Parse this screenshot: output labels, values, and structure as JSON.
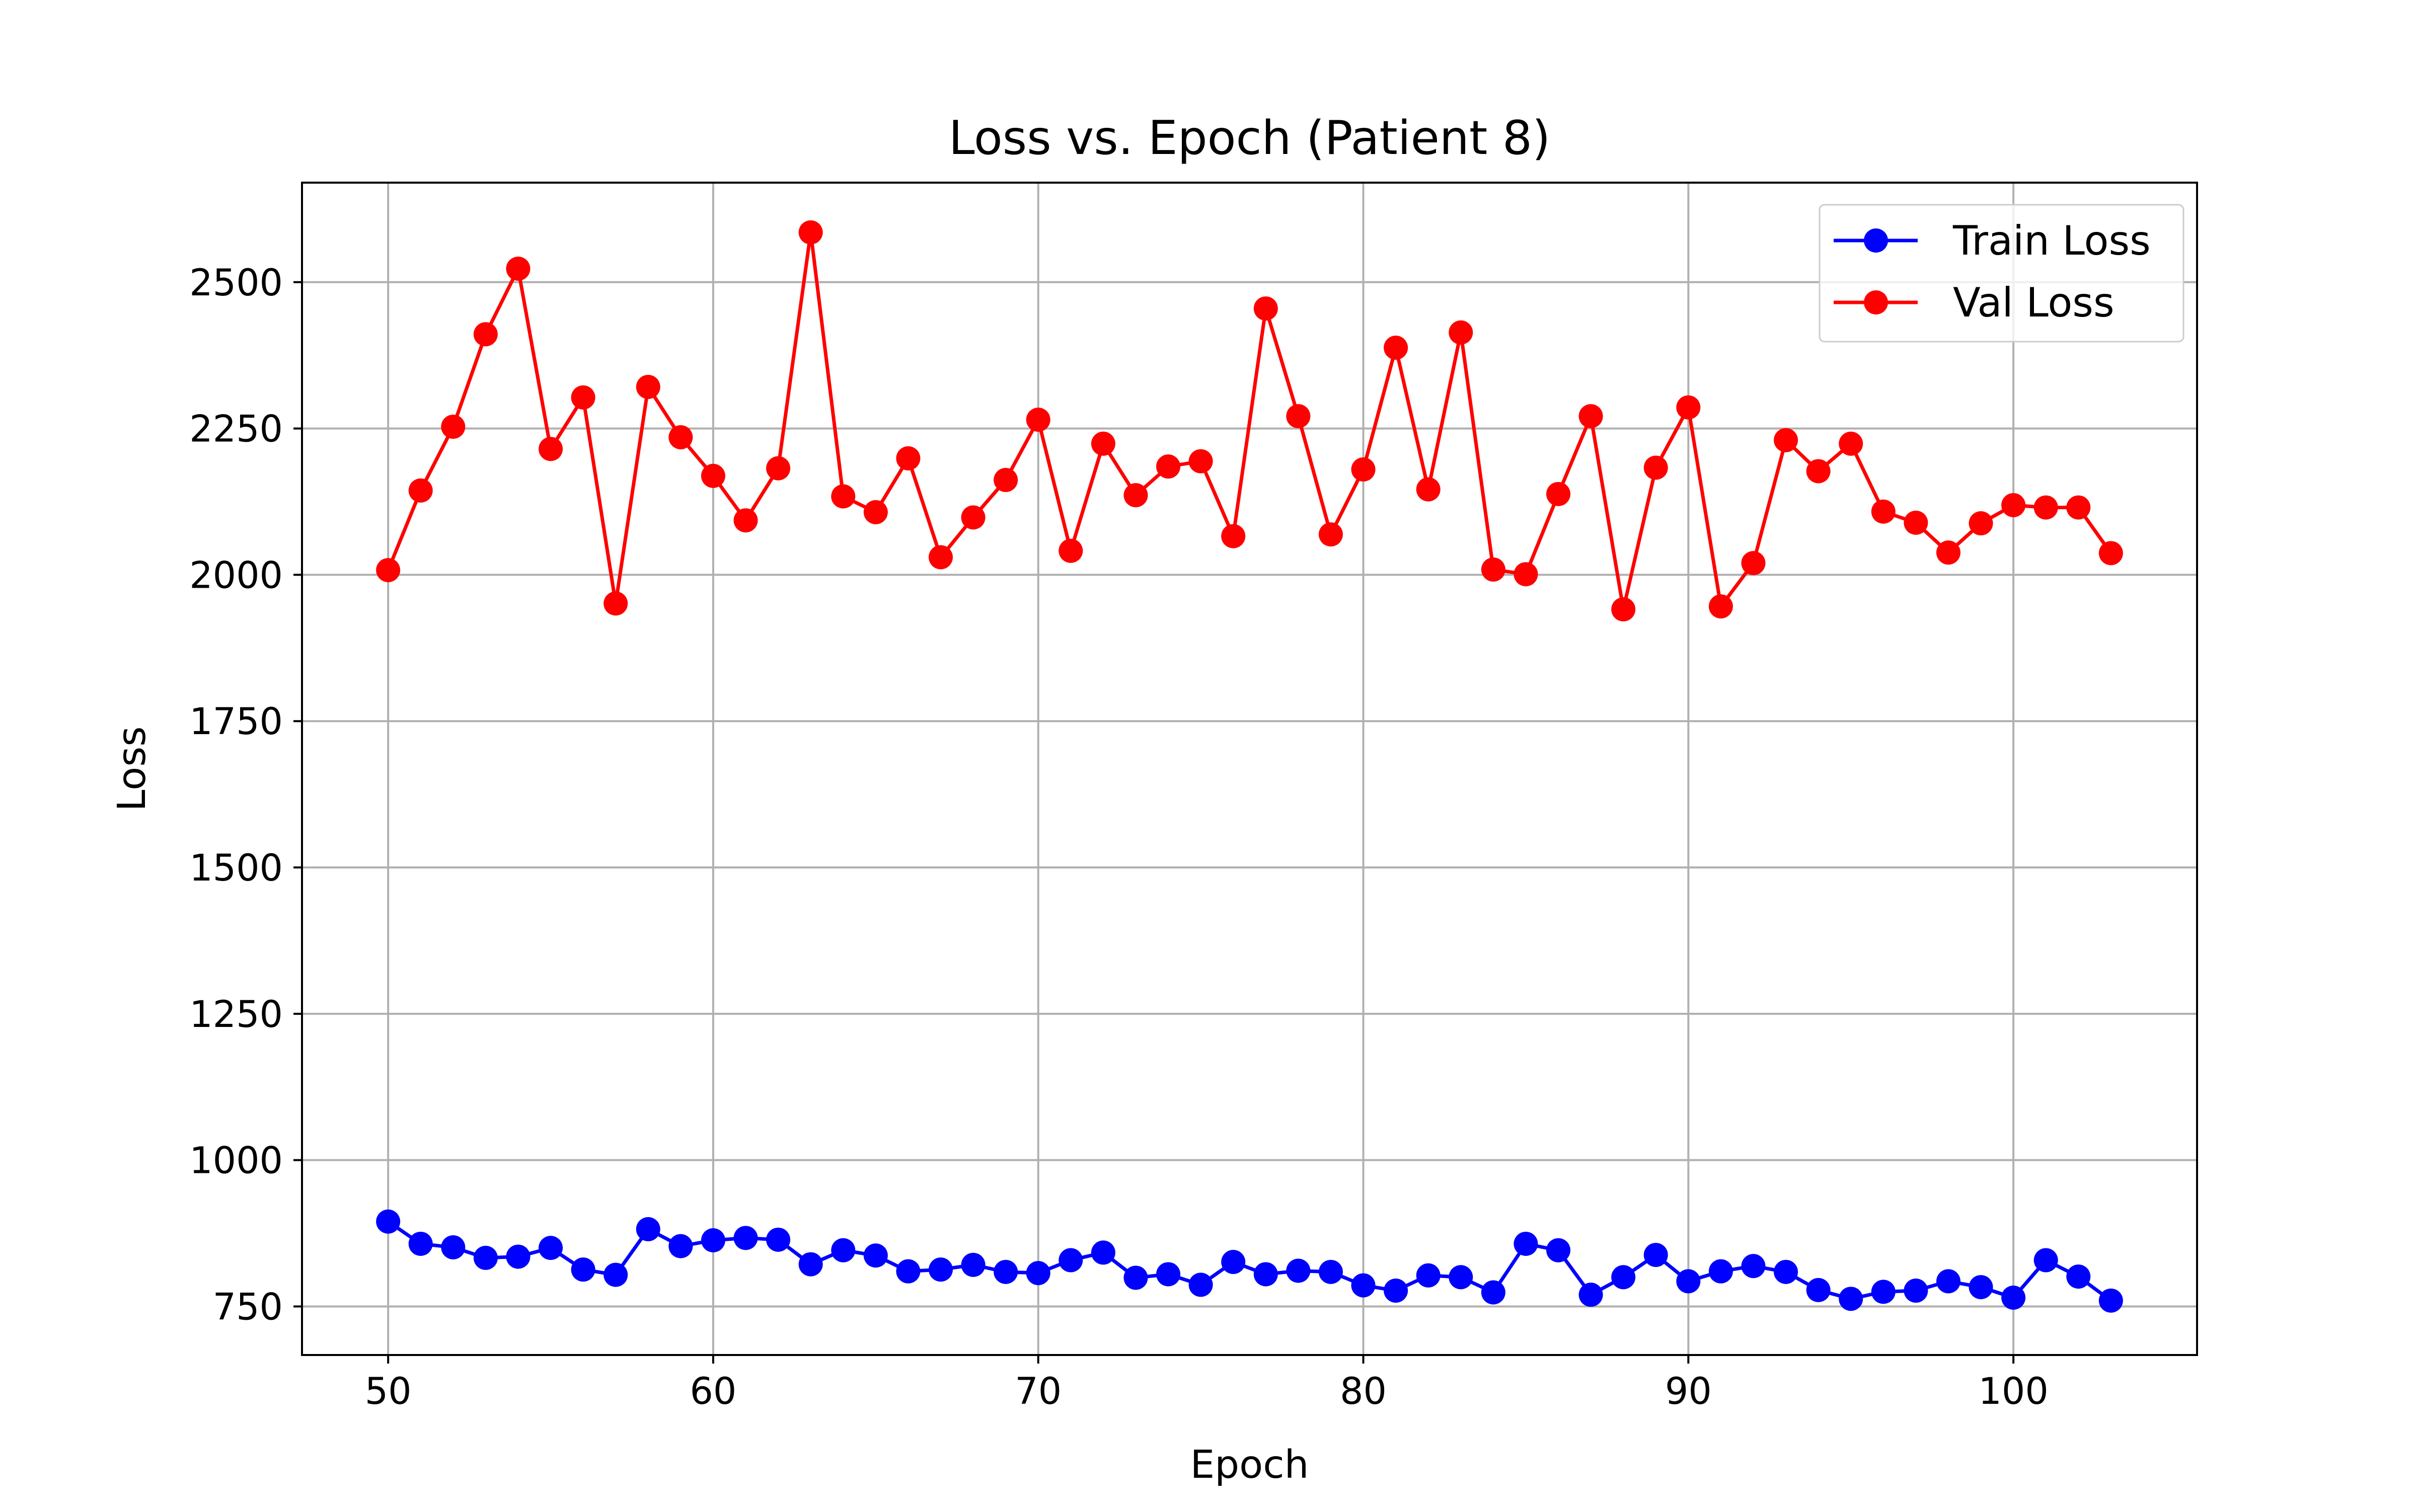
{
  "chart_data": {
    "type": "line",
    "title": "Loss vs. Epoch (Patient 8)",
    "xlabel": "Epoch",
    "ylabel": "Loss",
    "xlim": [
      47.35,
      105.65
    ],
    "ylim": [
      667,
      2670
    ],
    "xticks": [
      50,
      60,
      70,
      80,
      90,
      100
    ],
    "yticks": [
      750,
      1000,
      1250,
      1500,
      1750,
      2000,
      2250,
      2500
    ],
    "grid": true,
    "legend_position": "top-right",
    "x": [
      50,
      51,
      52,
      53,
      54,
      55,
      56,
      57,
      58,
      59,
      60,
      61,
      62,
      63,
      64,
      65,
      66,
      67,
      68,
      69,
      70,
      71,
      72,
      73,
      74,
      75,
      76,
      77,
      78,
      79,
      80,
      81,
      82,
      83,
      84,
      85,
      86,
      87,
      88,
      89,
      90,
      91,
      92,
      93,
      94,
      95,
      96,
      97,
      98,
      99,
      100,
      101,
      102,
      103
    ],
    "series": [
      {
        "name": "Train Loss",
        "color": "#0000ff",
        "values": [
          895,
          857,
          851,
          833,
          835,
          850,
          813,
          804,
          882,
          853,
          863,
          867,
          864,
          822,
          846,
          837,
          810,
          813,
          821,
          809,
          807,
          829,
          842,
          799,
          805,
          787,
          826,
          805,
          811,
          809,
          786,
          777,
          803,
          800,
          774,
          857,
          846,
          770,
          800,
          838,
          793,
          810,
          819,
          809,
          778,
          763,
          775,
          777,
          793,
          783,
          765,
          829,
          801,
          760
        ]
      },
      {
        "name": "Val Loss",
        "color": "#ff0000",
        "values": [
          2008,
          2144,
          2253,
          2411,
          2523,
          2215,
          2303,
          1951,
          2321,
          2235,
          2169,
          2093,
          2182,
          2585,
          2134,
          2107,
          2199,
          2030,
          2098,
          2162,
          2265,
          2041,
          2224,
          2136,
          2185,
          2194,
          2066,
          2455,
          2271,
          2069,
          2180,
          2388,
          2146,
          2414,
          2009,
          2001,
          2138,
          2271,
          1941,
          2183,
          2286,
          1946,
          2020,
          2230,
          2177,
          2224,
          2108,
          2089,
          2038,
          2088,
          2119,
          2115,
          2115,
          2037
        ]
      }
    ]
  }
}
